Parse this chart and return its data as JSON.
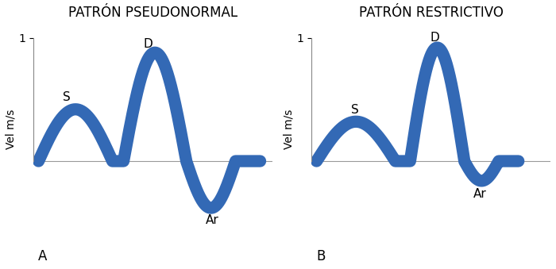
{
  "title_A": "PATRÓN PSEUDONORMAL",
  "title_B": "PATRÓN RESTRICTIVO",
  "label_A": "A",
  "label_B": "B",
  "ylabel": "Vel m/s",
  "ytick_label": "1",
  "label_S": "S",
  "label_D": "D",
  "label_Ar": "Ar",
  "wave_color": "#3369b5",
  "bg_color": "#ffffff",
  "text_color": "#000000",
  "title_fontsize": 12,
  "label_fontsize": 11,
  "ylabel_fontsize": 10,
  "tick_fontsize": 10,
  "lw": 11
}
